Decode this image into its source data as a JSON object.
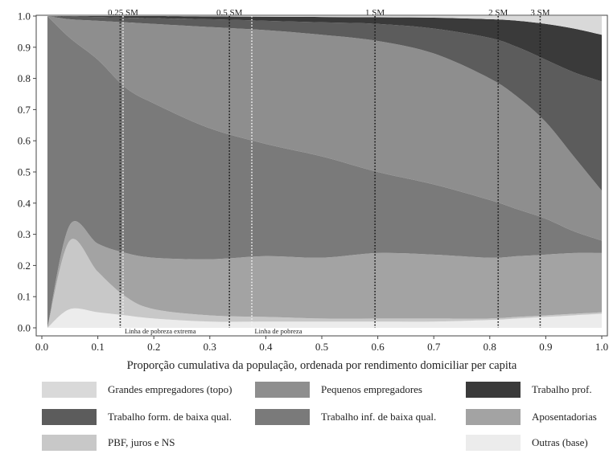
{
  "chart_data": {
    "type": "area",
    "stacked": true,
    "xlabel": "Proporção cumulativa da população, ordenada por rendimento domiciliar per capita",
    "ylabel": "",
    "xlim": [
      0,
      1
    ],
    "ylim": [
      0,
      1
    ],
    "x_ticks": [
      "0.0",
      "0.1",
      "0.2",
      "0.3",
      "0.4",
      "0.5",
      "0.6",
      "0.7",
      "0.8",
      "0.9",
      "1.0"
    ],
    "y_ticks": [
      "0.0",
      "0.1",
      "0.2",
      "0.3",
      "0.4",
      "0.5",
      "0.6",
      "0.7",
      "0.8",
      "0.9",
      "1.0"
    ],
    "grid": false,
    "x": [
      0.01,
      0.05,
      0.1,
      0.15,
      0.2,
      0.3,
      0.4,
      0.5,
      0.6,
      0.7,
      0.8,
      0.85,
      0.9,
      0.95,
      1.0
    ],
    "boundaries": {
      "outras_top": [
        0.0,
        0.06,
        0.05,
        0.04,
        0.03,
        0.02,
        0.02,
        0.02,
        0.02,
        0.02,
        0.025,
        0.03,
        0.035,
        0.04,
        0.045
      ],
      "pbf_top": [
        0.0,
        0.28,
        0.18,
        0.1,
        0.06,
        0.04,
        0.035,
        0.03,
        0.03,
        0.03,
        0.03,
        0.035,
        0.04,
        0.045,
        0.05
      ],
      "aposent_top": [
        0.0,
        0.33,
        0.27,
        0.24,
        0.225,
        0.22,
        0.23,
        0.225,
        0.24,
        0.235,
        0.225,
        0.23,
        0.235,
        0.24,
        0.24
      ],
      "trab_inf_top": [
        1.0,
        0.93,
        0.86,
        0.77,
        0.72,
        0.64,
        0.59,
        0.55,
        0.5,
        0.46,
        0.41,
        0.38,
        0.35,
        0.31,
        0.28
      ],
      "pequenos_top": [
        1.0,
        0.99,
        0.985,
        0.98,
        0.975,
        0.965,
        0.955,
        0.94,
        0.92,
        0.88,
        0.8,
        0.74,
        0.66,
        0.55,
        0.44
      ],
      "trab_form_top": [
        1.0,
        0.998,
        0.997,
        0.995,
        0.993,
        0.99,
        0.985,
        0.98,
        0.975,
        0.96,
        0.93,
        0.9,
        0.86,
        0.82,
        0.79
      ],
      "trab_prof_top": [
        1.0,
        1.0,
        1.0,
        1.0,
        1.0,
        0.999,
        0.998,
        0.997,
        0.996,
        0.995,
        0.99,
        0.985,
        0.975,
        0.96,
        0.94
      ],
      "grandes_top": [
        1.0,
        1.0,
        1.0,
        1.0,
        1.0,
        1.0,
        1.0,
        1.0,
        1.0,
        1.0,
        1.0,
        1.0,
        1.0,
        1.0,
        1.0
      ]
    },
    "series": [
      {
        "name": "Outras (base)",
        "lower": "zero",
        "upper": "outras_top",
        "color": "#ececec"
      },
      {
        "name": "PBF, juros e NS",
        "lower": "outras_top",
        "upper": "pbf_top",
        "color": "#c8c8c8"
      },
      {
        "name": "Aposentadorias",
        "lower": "pbf_top",
        "upper": "aposent_top",
        "color": "#a3a3a3"
      },
      {
        "name": "Trabalho inf. de baixa qual.",
        "lower": "aposent_top",
        "upper": "trab_inf_top",
        "color": "#7a7a7a"
      },
      {
        "name": "Pequenos empregadores",
        "lower": "trab_inf_top",
        "upper": "pequenos_top",
        "color": "#8e8e8e"
      },
      {
        "name": "Trabalho form. de baixa qual.",
        "lower": "pequenos_top",
        "upper": "trab_form_top",
        "color": "#5c5c5c"
      },
      {
        "name": "Trabalho prof.",
        "lower": "trab_form_top",
        "upper": "trab_prof_top",
        "color": "#3a3a3a"
      },
      {
        "name": "Grandes empregadores (topo)",
        "lower": "trab_prof_top",
        "upper": "grandes_top",
        "color": "#d9d9d9"
      }
    ],
    "reference_lines": [
      {
        "x": 0.14,
        "style": "dotted-dark",
        "label": "",
        "label_position": "none"
      },
      {
        "x": 0.145,
        "style": "dotted-light",
        "label": "0.25 SM",
        "label_position": "top"
      },
      {
        "x": 0.335,
        "style": "dotted-dark",
        "label": "0.5 SM",
        "label_position": "top"
      },
      {
        "x": 0.375,
        "style": "dotted-light",
        "label": "",
        "label_position": "none"
      },
      {
        "x": 0.595,
        "style": "dotted-dark",
        "label": "1 SM",
        "label_position": "top"
      },
      {
        "x": 0.815,
        "style": "dotted-dark",
        "label": "2 SM",
        "label_position": "top"
      },
      {
        "x": 0.89,
        "style": "dotted-dark",
        "label": "3 SM",
        "label_position": "top"
      }
    ],
    "bottom_annotations": [
      {
        "x": 0.148,
        "text": "Linha de pobreza extrema"
      },
      {
        "x": 0.38,
        "text": "Linha de pobreza"
      }
    ],
    "legend": {
      "placement": "bottom",
      "columns": 3,
      "entries": [
        {
          "label": "Grandes empregadores (topo)",
          "color": "#d9d9d9"
        },
        {
          "label": "Pequenos empregadores",
          "color": "#8e8e8e"
        },
        {
          "label": "Trabalho prof.",
          "color": "#3a3a3a"
        },
        {
          "label": "Trabalho form. de baixa qual.",
          "color": "#5c5c5c"
        },
        {
          "label": "Trabalho inf. de baixa qual.",
          "color": "#7a7a7a"
        },
        {
          "label": "Aposentadorias",
          "color": "#a3a3a3"
        },
        {
          "label": "PBF, juros e NS",
          "color": "#c8c8c8"
        },
        {
          "label": "",
          "color": ""
        },
        {
          "label": "Outras (base)",
          "color": "#ececec"
        }
      ]
    }
  }
}
